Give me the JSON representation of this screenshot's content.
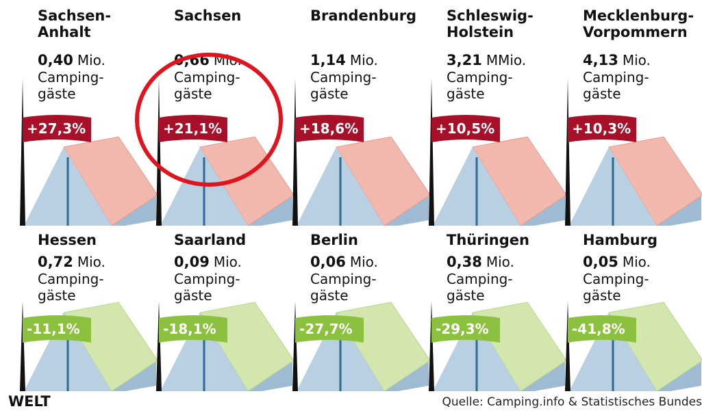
{
  "panels": [
    {
      "name": [
        "Sachsen-",
        "Anhalt"
      ],
      "amount": "0,40",
      "unit": "Mio.",
      "label": [
        "Camping-",
        "gäste"
      ],
      "change": "+27,3%"
    },
    {
      "name": [
        "Sachsen"
      ],
      "amount": "0,66",
      "unit": "Mio.",
      "label": [
        "Camping-",
        "gäste"
      ],
      "change": "+21,1%"
    },
    {
      "name": [
        "Brandenburg"
      ],
      "amount": "1,14",
      "unit": "Mio.",
      "label": [
        "Camping-",
        "gäste"
      ],
      "change": "+18,6%"
    },
    {
      "name": [
        "Schleswig-",
        "Holstein"
      ],
      "amount": "3,21",
      "unit": "MMio.",
      "label": [
        "Camping-",
        "gäste"
      ],
      "change": "+10,5%"
    },
    {
      "name": [
        "Mecklenburg-",
        "Vorpommern"
      ],
      "amount": "4,13",
      "unit": "Mio.",
      "label": [
        "Camping-",
        "gäste"
      ],
      "change": "+10,3%"
    },
    {
      "name": [
        "Hessen"
      ],
      "amount": "0,72",
      "unit": "Mio.",
      "label": [
        "Camping-",
        "gäste"
      ],
      "change": "-11,1%"
    },
    {
      "name": [
        "Saarland"
      ],
      "amount": "0,09",
      "unit": "Mio.",
      "label": [
        "Camping-",
        "gäste"
      ],
      "change": "-18,1%"
    },
    {
      "name": [
        "Berlin"
      ],
      "amount": "0,06",
      "unit": "Mio.",
      "label": [
        "Camping-",
        "gäste"
      ],
      "change": "-27,7%"
    },
    {
      "name": [
        "Thüringen"
      ],
      "amount": "0,38",
      "unit": "Mio.",
      "label": [
        "Camping-",
        "gäste"
      ],
      "change": "-29,3%"
    },
    {
      "name": [
        "Hamburg"
      ],
      "amount": "0,05",
      "unit": "Mio.",
      "label": [
        "Camping-",
        "gäste"
      ],
      "change": "-41,8%"
    }
  ],
  "footer": {
    "logo": "WELT",
    "source": "Quelle: Camping.info & Statistisches Bundes"
  }
}
